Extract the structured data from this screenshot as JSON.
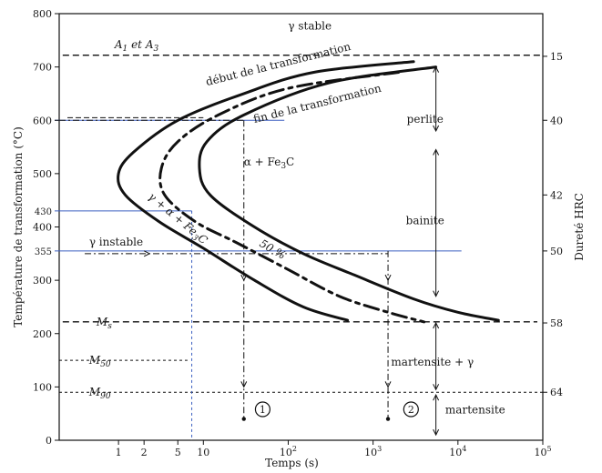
{
  "chart_data": {
    "type": "line",
    "title": "",
    "xlabel": "Temps (s)",
    "ylabel": "Température de transformation (°C)",
    "y2label": "Dureté HRC",
    "xscale": "log",
    "xlim": [
      0.2,
      100000
    ],
    "ylim": [
      0,
      800
    ],
    "x_ticks": [
      {
        "x": 1,
        "label": "1"
      },
      {
        "x": 2,
        "label": "2"
      },
      {
        "x": 5,
        "label": "5"
      },
      {
        "x": 10,
        "label": "10"
      },
      {
        "x": 100,
        "label": "10",
        "sup": "2"
      },
      {
        "x": 1000,
        "label": "10",
        "sup": "3"
      },
      {
        "x": 10000,
        "label": "10",
        "sup": "4"
      },
      {
        "x": 100000,
        "label": "10",
        "sup": "5"
      }
    ],
    "y_ticks": [
      "0",
      "100",
      "200",
      "300",
      "400",
      "500",
      "600",
      "700",
      "800"
    ],
    "y_extra_ticks": [
      {
        "y": 600,
        "label": "600"
      },
      {
        "y": 430,
        "label": "430"
      },
      {
        "y": 355,
        "label": "355"
      }
    ],
    "hrc_ticks": [
      {
        "y": 720,
        "label": "15"
      },
      {
        "y": 600,
        "label": "40"
      },
      {
        "y": 460,
        "label": "42"
      },
      {
        "y": 355,
        "label": "50"
      },
      {
        "y": 220,
        "label": "58"
      },
      {
        "y": 90,
        "label": "64"
      }
    ],
    "series": [
      {
        "name": "début de la transformation",
        "style": "solid",
        "points": [
          [
            3000,
            710
          ],
          [
            200,
            690
          ],
          [
            30,
            650
          ],
          [
            5,
            600
          ],
          [
            1.5,
            540
          ],
          [
            1,
            500
          ],
          [
            1.2,
            460
          ],
          [
            3,
            410
          ],
          [
            10,
            360
          ],
          [
            40,
            300
          ],
          [
            150,
            250
          ],
          [
            500,
            225
          ]
        ]
      },
      {
        "name": "50 %",
        "style": "dashdot",
        "points": [
          [
            2000,
            690
          ],
          [
            100,
            660
          ],
          [
            15,
            610
          ],
          [
            5,
            560
          ],
          [
            3.2,
            510
          ],
          [
            3.5,
            460
          ],
          [
            8,
            410
          ],
          [
            25,
            370
          ],
          [
            100,
            320
          ],
          [
            400,
            270
          ],
          [
            1500,
            240
          ],
          [
            4000,
            222
          ]
        ]
      },
      {
        "name": "fin de la transformation",
        "style": "solid",
        "points": [
          [
            5500,
            700
          ],
          [
            300,
            670
          ],
          [
            30,
            610
          ],
          [
            11,
            560
          ],
          [
            9,
            510
          ],
          [
            12,
            460
          ],
          [
            40,
            400
          ],
          [
            150,
            350
          ],
          [
            600,
            310
          ],
          [
            3000,
            265
          ],
          [
            10000,
            240
          ],
          [
            30000,
            225
          ]
        ]
      }
    ],
    "reference_lines": [
      {
        "label": "A1 et A3",
        "y": 722,
        "style": "dashed"
      },
      {
        "label": "Ms",
        "y": 222,
        "style": "dashed"
      },
      {
        "label": "M50",
        "y": 150,
        "style": "dashed"
      },
      {
        "label": "M90",
        "y": 90,
        "style": "dashed"
      }
    ],
    "cooling_paths": [
      {
        "id": "1",
        "x": 30,
        "from_y": 600,
        "to_y": 40
      },
      {
        "id": "2",
        "x": 1500,
        "from_y": 355,
        "to_y": 40
      }
    ],
    "region_labels": {
      "gamma_stable": "γ stable",
      "gamma_instable": "γ instable",
      "alpha_fe3c": "α + Fe",
      "alpha_fe3c_sub": "3",
      "alpha_fe3c_end": "C",
      "gamma_alpha_fe3c": "γ + α + Fe",
      "gamma_alpha_fe3c_sub": "3",
      "gamma_alpha_fe3c_end": "C",
      "perlite": "perlite",
      "bainite": "bainite",
      "martensite_gamma": "martensite + γ",
      "martensite": "martensite",
      "a1_a3": "A",
      "a1_sub": "1",
      "a1_mid": " et A",
      "a3_sub": "3",
      "ms": "M",
      "ms_sub": "s",
      "m50": "M",
      "m50_sub": "50",
      "m90": "M",
      "m90_sub": "90",
      "fifty_percent": "50 %"
    },
    "grid": false,
    "legend": "none"
  }
}
